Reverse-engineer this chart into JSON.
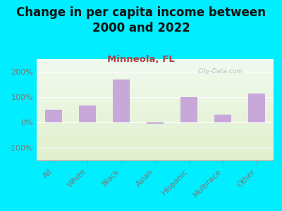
{
  "title": "Change in per capita income between\n2000 and 2022",
  "subtitle": "Minneola, FL",
  "categories": [
    "All",
    "White",
    "Black",
    "Asian",
    "Hispanic",
    "Multirace",
    "Other"
  ],
  "values": [
    50,
    68,
    170,
    -5,
    100,
    30,
    115
  ],
  "bar_color": "#c8a8d8",
  "background_outer": "#00eeff",
  "title_color": "#111111",
  "subtitle_color": "#aa4444",
  "tick_label_color": "#777777",
  "ylim": [
    -150,
    250
  ],
  "yticks": [
    -100,
    0,
    100,
    200
  ],
  "ytick_labels": [
    "-100%",
    "0%",
    "100%",
    "200%"
  ],
  "watermark": "City-Data.com",
  "title_fontsize": 12,
  "subtitle_fontsize": 9.5,
  "tick_fontsize": 8
}
